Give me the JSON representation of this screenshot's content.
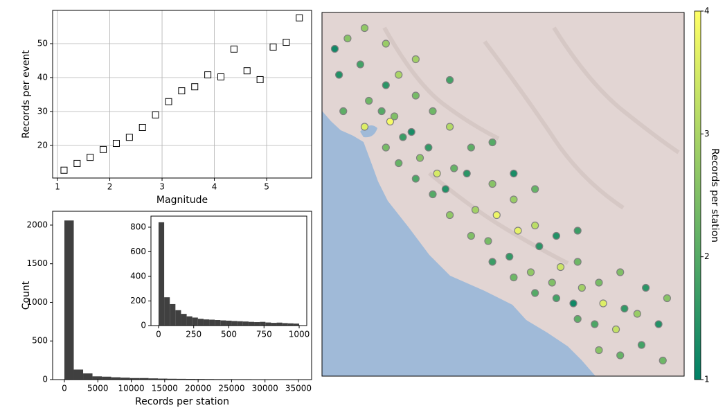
{
  "chart_data": [
    {
      "type": "scatter",
      "xlabel": "Magnitude",
      "ylabel": "Records per event",
      "marker": "square",
      "color": "#000000",
      "grid": true,
      "x": [
        1.125,
        1.375,
        1.625,
        1.875,
        2.125,
        2.375,
        2.625,
        2.875,
        3.125,
        3.375,
        3.625,
        3.875,
        4.125,
        4.375,
        4.625,
        4.875,
        5.125,
        5.375,
        5.625
      ],
      "values": [
        12.7,
        14.7,
        16.5,
        18.8,
        20.6,
        22.4,
        25.3,
        29.0,
        32.9,
        36.1,
        37.3,
        40.8,
        40.2,
        48.4,
        42.0,
        39.4,
        49.0,
        50.4,
        57.6
      ],
      "xlim": [
        0.907,
        5.86
      ],
      "ylim": [
        10.4,
        59.8
      ],
      "xticks": [
        1,
        2,
        3,
        4,
        5
      ],
      "yticks": [
        20,
        30,
        40,
        50
      ]
    },
    {
      "type": "histogram",
      "xlabel": "Records per station",
      "ylabel": "Count",
      "color": "#404040",
      "bins": [
        0,
        1400,
        2800,
        4200,
        5600,
        7000,
        8400,
        9800,
        11200,
        12600,
        14000,
        15400,
        16800,
        18200,
        19600,
        21000,
        22400,
        23800,
        25200,
        26600,
        28000,
        29400,
        30800,
        32200,
        33600,
        35000
      ],
      "values": [
        2060,
        130,
        80,
        42,
        38,
        30,
        25,
        20,
        20,
        16,
        13,
        11,
        10,
        9,
        8,
        7,
        6,
        6,
        5,
        5,
        4,
        4,
        3,
        2,
        1
      ],
      "xlim": [
        -1760,
        36970
      ],
      "ylim": [
        0,
        2179
      ],
      "xticks": [
        0,
        5000,
        10000,
        15000,
        20000,
        25000,
        30000,
        35000
      ],
      "yticks": [
        0,
        500,
        1000,
        1500,
        2000
      ]
    },
    {
      "type": "histogram",
      "color": "#404040",
      "bins": [
        0,
        40,
        80,
        120,
        160,
        200,
        240,
        280,
        320,
        360,
        400,
        440,
        480,
        520,
        560,
        600,
        640,
        680,
        720,
        760,
        800,
        840,
        880,
        920,
        960,
        1000
      ],
      "values": [
        840,
        230,
        175,
        125,
        95,
        75,
        65,
        55,
        50,
        48,
        45,
        42,
        40,
        37,
        35,
        33,
        30,
        28,
        30,
        25,
        22,
        24,
        20,
        18,
        16
      ],
      "xlim": [
        -54,
        1054
      ],
      "ylim": [
        0,
        890
      ],
      "xticks": [
        0,
        250,
        500,
        750,
        1000
      ],
      "yticks": [
        0,
        200,
        400,
        600,
        800
      ]
    },
    {
      "type": "scatter",
      "colormap": "summer",
      "edgecolor": "#808080",
      "clabel": "Records per station",
      "clim": [
        1,
        4
      ],
      "cticks": [
        1,
        2,
        3,
        4
      ],
      "xlim": [
        -124,
        -115.5
      ],
      "ylim": [
        32.5,
        39.5
      ],
      "x": [
        -123.5,
        -123.6,
        -123.4,
        -123.7,
        -123.0,
        -122.9,
        -123.1,
        -123.0,
        -122.5,
        -122.4,
        -122.6,
        -122.5,
        -122.5,
        -122.2,
        -122.1,
        -122.3,
        -122.2,
        -121.8,
        -121.7,
        -121.9,
        -121.8,
        -121.8,
        -121.4,
        -121.3,
        -121.5,
        -121.4,
        -121.0,
        -121.1,
        -120.9,
        -121.0,
        -121.0,
        -120.5,
        -120.4,
        -120.6,
        -120.5,
        -120.0,
        -120.1,
        -119.9,
        -120.0,
        -120.0,
        -119.5,
        -119.6,
        -119.4,
        -119.5,
        -119.5,
        -119.0,
        -119.1,
        -118.9,
        -119.0,
        -119.0,
        -118.5,
        -118.6,
        -118.4,
        -118.5,
        -118.0,
        -118.1,
        -117.9,
        -118.0,
        -118.0,
        -117.5,
        -117.6,
        -117.4,
        -117.5,
        -117.0,
        -117.1,
        -116.9,
        -117.0,
        -116.5,
        -116.6,
        -116.4,
        -116.0,
        -116.1,
        -115.9
      ],
      "y": [
        37.6,
        38.3,
        39.0,
        38.8,
        37.3,
        37.8,
        38.5,
        39.2,
        36.9,
        37.4,
        37.6,
        38.1,
        38.9,
        36.6,
        37.1,
        37.5,
        38.3,
        36.3,
        36.7,
        37.2,
        37.9,
        38.6,
        36.0,
        36.4,
        36.9,
        37.6,
        35.6,
        36.1,
        36.5,
        37.3,
        38.2,
        35.2,
        35.7,
        36.4,
        36.9,
        34.7,
        35.1,
        35.6,
        36.2,
        37.0,
        34.4,
        34.8,
        35.3,
        35.9,
        36.4,
        34.1,
        34.5,
        35.0,
        35.4,
        36.1,
        34.0,
        34.3,
        34.6,
        35.2,
        33.6,
        33.9,
        34.2,
        34.7,
        35.3,
        33.0,
        33.5,
        33.9,
        34.3,
        32.9,
        33.4,
        33.8,
        34.5,
        33.1,
        33.7,
        34.2,
        32.8,
        33.5,
        34.0
      ],
      "values": [
        2.1,
        1.4,
        2.6,
        1.2,
        3.6,
        2.3,
        1.8,
        2.7,
        2.4,
        3.9,
        2.0,
        1.5,
        2.8,
        2.2,
        1.7,
        2.5,
        3.0,
        1.9,
        2.6,
        1.3,
        2.4,
        2.9,
        2.0,
        3.5,
        1.6,
        2.3,
        2.7,
        1.4,
        2.2,
        3.1,
        1.8,
        2.5,
        2.9,
        1.5,
        2.1,
        1.7,
        2.4,
        3.8,
        2.6,
        2.0,
        2.3,
        1.6,
        3.7,
        2.8,
        1.3,
        2.0,
        2.7,
        1.5,
        3.2,
        2.2,
        1.8,
        2.5,
        3.4,
        1.4,
        2.1,
        1.2,
        2.9,
        2.3,
        1.7,
        2.6,
        1.9,
        3.6,
        2.4,
        2.2,
        3.3,
        1.6,
        2.5,
        1.8,
        2.8,
        1.5,
        2.3,
        1.4,
        2.6
      ]
    }
  ]
}
